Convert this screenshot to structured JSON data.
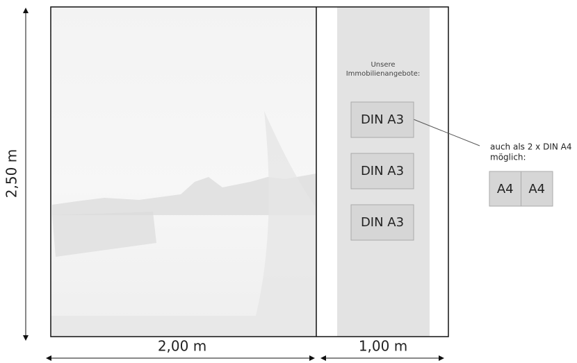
{
  "dimensions": {
    "height": "2,50 m",
    "width_left": "2,00 m",
    "width_right": "1,00 m"
  },
  "panel": {
    "heading": [
      "Unsere",
      "Immobilienangebote:"
    ],
    "boxes": [
      "DIN A3",
      "DIN A3",
      "DIN A3"
    ]
  },
  "note": {
    "lines": [
      "auch als 2 x DIN A4",
      "möglich:"
    ],
    "boxes": [
      "A4",
      "A4"
    ]
  }
}
